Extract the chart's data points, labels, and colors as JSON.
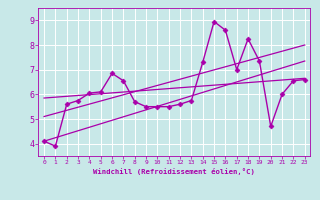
{
  "xlabel": "Windchill (Refroidissement éolien,°C)",
  "xlim": [
    -0.5,
    23.5
  ],
  "ylim": [
    3.5,
    9.5
  ],
  "xticks": [
    0,
    1,
    2,
    3,
    4,
    5,
    6,
    7,
    8,
    9,
    10,
    11,
    12,
    13,
    14,
    15,
    16,
    17,
    18,
    19,
    20,
    21,
    22,
    23
  ],
  "yticks": [
    4,
    5,
    6,
    7,
    8,
    9
  ],
  "bg_color": "#c8e8e8",
  "line_color": "#aa00aa",
  "grid_color": "#ffffff",
  "data_line": {
    "x": [
      0,
      1,
      2,
      3,
      4,
      5,
      6,
      7,
      8,
      9,
      10,
      11,
      12,
      13,
      14,
      15,
      16,
      17,
      18,
      19,
      20,
      21,
      22,
      23
    ],
    "y": [
      4.1,
      3.9,
      5.6,
      5.75,
      6.05,
      6.1,
      6.85,
      6.55,
      5.7,
      5.5,
      5.5,
      5.5,
      5.6,
      5.75,
      7.3,
      8.95,
      8.6,
      7.0,
      8.25,
      7.35,
      4.7,
      6.0,
      6.55,
      6.6
    ],
    "marker": "D",
    "markersize": 2.5,
    "linewidth": 1.0
  },
  "reg_lines": [
    {
      "x0": 0,
      "y0": 4.1,
      "x1": 23,
      "y1": 7.35
    },
    {
      "x0": 0,
      "y0": 5.1,
      "x1": 23,
      "y1": 8.0
    },
    {
      "x0": 0,
      "y0": 5.85,
      "x1": 23,
      "y1": 6.65
    }
  ]
}
